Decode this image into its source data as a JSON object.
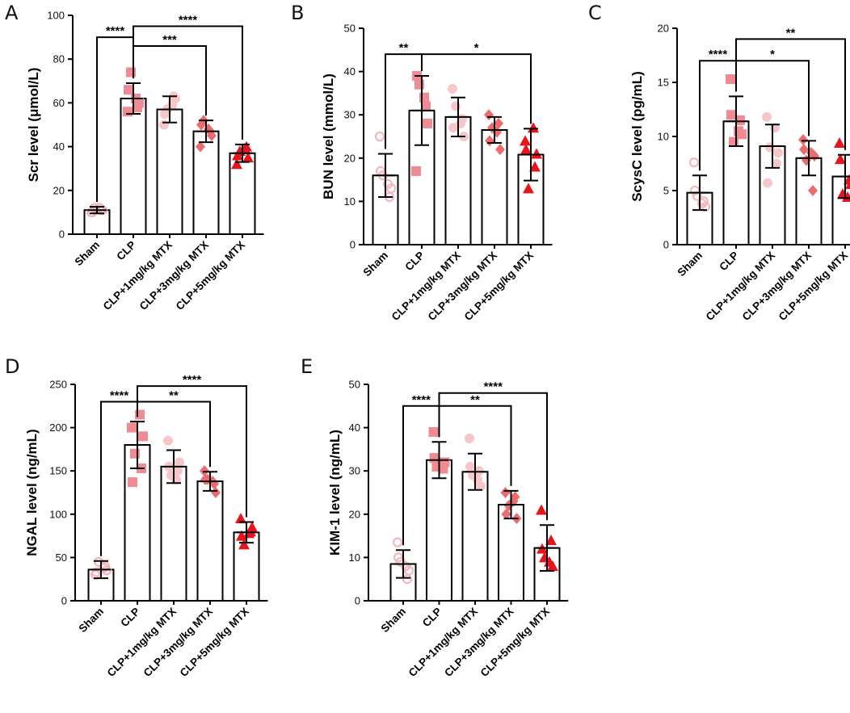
{
  "chart_data": [
    {
      "type": "bar",
      "panel": "A",
      "ylabel": "Scr level (μmol/L)",
      "ylim": [
        0,
        100
      ],
      "yticks": [
        0,
        20,
        40,
        60,
        80,
        100
      ],
      "categories": [
        "Sham",
        "CLP",
        "CLP+1mg/kg MTX",
        "CLP+3mg/kg MTX",
        "CLP+5mg/kg MTX"
      ],
      "values": [
        11,
        62,
        57,
        47,
        37
      ],
      "errors": [
        1.5,
        7,
        6,
        5,
        4
      ],
      "points": [
        [
          10,
          11,
          12,
          11,
          10,
          12
        ],
        [
          56,
          60,
          74,
          58,
          66,
          62
        ],
        [
          50,
          62,
          57,
          63,
          55,
          59
        ],
        [
          40,
          45,
          52,
          47,
          50,
          48
        ],
        [
          32,
          35,
          38,
          40,
          36,
          39
        ]
      ],
      "comparisons": [
        {
          "from": 0,
          "to": 1,
          "label": "****",
          "y": 90
        },
        {
          "from": 1,
          "to": 3,
          "label": "***",
          "y": 86
        },
        {
          "from": 1,
          "to": 4,
          "label": "****",
          "y": 95
        }
      ]
    },
    {
      "type": "bar",
      "panel": "B",
      "ylabel": "BUN level (mmol/L)",
      "ylim": [
        0,
        50
      ],
      "yticks": [
        0,
        10,
        20,
        30,
        40,
        50
      ],
      "categories": [
        "Sham",
        "CLP",
        "CLP+1mg/kg MTX",
        "CLP+3mg/kg MTX",
        "CLP+5mg/kg MTX"
      ],
      "values": [
        16,
        31,
        29.5,
        26.5,
        20.8
      ],
      "errors": [
        5,
        8,
        4.5,
        3,
        6
      ],
      "points": [
        [
          25,
          13,
          16,
          11,
          17,
          14
        ],
        [
          17,
          28,
          37,
          32,
          39,
          34
        ],
        [
          36,
          25,
          32,
          29,
          27,
          28
        ],
        [
          30,
          22,
          27,
          28,
          24,
          26
        ],
        [
          24,
          21,
          13,
          18,
          22,
          27
        ]
      ],
      "comparisons": [
        {
          "from": 0,
          "to": 1,
          "label": "**",
          "y": 44
        },
        {
          "from": 1,
          "to": 4,
          "label": "*",
          "y": 44
        }
      ]
    },
    {
      "type": "bar",
      "panel": "C",
      "ylabel": "ScysC level (pg/mL)",
      "ylim": [
        0,
        20
      ],
      "yticks": [
        0,
        5,
        10,
        15,
        20
      ],
      "categories": [
        "Sham",
        "CLP",
        "CLP+1mg/kg MTX",
        "CLP+3mg/kg MTX",
        "CLP+5mg/kg MTX"
      ],
      "values": [
        4.8,
        11.4,
        9.1,
        8.0,
        6.3
      ],
      "errors": [
        1.6,
        2.3,
        2.0,
        1.6,
        2.0
      ],
      "points": [
        [
          7.6,
          3.5,
          4.5,
          4.0,
          5.0,
          3.8
        ],
        [
          15.3,
          10.2,
          9.5,
          11.5,
          12.0,
          10.5
        ],
        [
          11.8,
          8.5,
          9.0,
          7.5,
          5.7,
          10.8
        ],
        [
          9.7,
          8.2,
          7.8,
          5.0,
          8.8,
          8.5
        ],
        [
          9.4,
          5.6,
          4.7,
          6.0,
          7.9,
          4.4
        ]
      ],
      "comparisons": [
        {
          "from": 0,
          "to": 1,
          "label": "****",
          "y": 17
        },
        {
          "from": 1,
          "to": 3,
          "label": "*",
          "y": 17
        },
        {
          "from": 1,
          "to": 4,
          "label": "**",
          "y": 19
        }
      ]
    },
    {
      "type": "bar",
      "panel": "D",
      "ylabel": "NGAL level (ng/mL)",
      "ylim": [
        0,
        250
      ],
      "yticks": [
        0,
        50,
        100,
        150,
        200,
        250
      ],
      "categories": [
        "Sham",
        "CLP",
        "CLP+1mg/kg MTX",
        "CLP+3mg/kg MTX",
        "CLP+5mg/kg MTX"
      ],
      "values": [
        36,
        180,
        155,
        138,
        79
      ],
      "errors": [
        10,
        27,
        19,
        11,
        12
      ],
      "points": [
        [
          30,
          35,
          45,
          40,
          33,
          38
        ],
        [
          200,
          190,
          170,
          153,
          137,
          215
        ],
        [
          185,
          160,
          145,
          150,
          155,
          140
        ],
        [
          150,
          125,
          140,
          135,
          140,
          138
        ],
        [
          95,
          85,
          65,
          80,
          75,
          78
        ]
      ],
      "comparisons": [
        {
          "from": 0,
          "to": 1,
          "label": "****",
          "y": 230
        },
        {
          "from": 1,
          "to": 3,
          "label": "**",
          "y": 230
        },
        {
          "from": 1,
          "to": 4,
          "label": "****",
          "y": 248
        }
      ]
    },
    {
      "type": "bar",
      "panel": "E",
      "ylabel": "KIM-1 level (ng/mL)",
      "ylim": [
        0,
        50
      ],
      "yticks": [
        0,
        10,
        20,
        30,
        40,
        50
      ],
      "categories": [
        "Sham",
        "CLP",
        "CLP+1mg/kg MTX",
        "CLP+3mg/kg MTX",
        "CLP+5mg/kg MTX"
      ],
      "values": [
        8.5,
        32.5,
        29.8,
        22.2,
        12.2
      ],
      "errors": [
        3.2,
        4.2,
        4.2,
        3.2,
        5.3
      ],
      "points": [
        [
          13.5,
          7.0,
          9.0,
          5.0,
          10.0,
          8.0
        ],
        [
          39.0,
          32.0,
          31.0,
          30.5,
          33.0,
          31.5
        ],
        [
          37.5,
          26.5,
          29.0,
          30.0,
          31.0,
          28.0
        ],
        [
          25.0,
          19.0,
          22.0,
          24.0,
          20.0,
          23.0
        ],
        [
          21.0,
          8.0,
          10.0,
          14.0,
          12.0,
          9.0
        ]
      ],
      "comparisons": [
        {
          "from": 0,
          "to": 1,
          "label": "****",
          "y": 45
        },
        {
          "from": 1,
          "to": 3,
          "label": "**",
          "y": 45
        },
        {
          "from": 1,
          "to": 4,
          "label": "****",
          "y": 48
        }
      ]
    }
  ],
  "colors": {
    "sham": "#f4b7bd",
    "clp": "#f08a93",
    "mtx1": "#f6c6c9",
    "mtx3": "#ec6b6e",
    "mtx5": "#e8141b",
    "axis": "#000000"
  },
  "markers": [
    "open-circle",
    "square",
    "circle",
    "diamond",
    "triangle"
  ]
}
